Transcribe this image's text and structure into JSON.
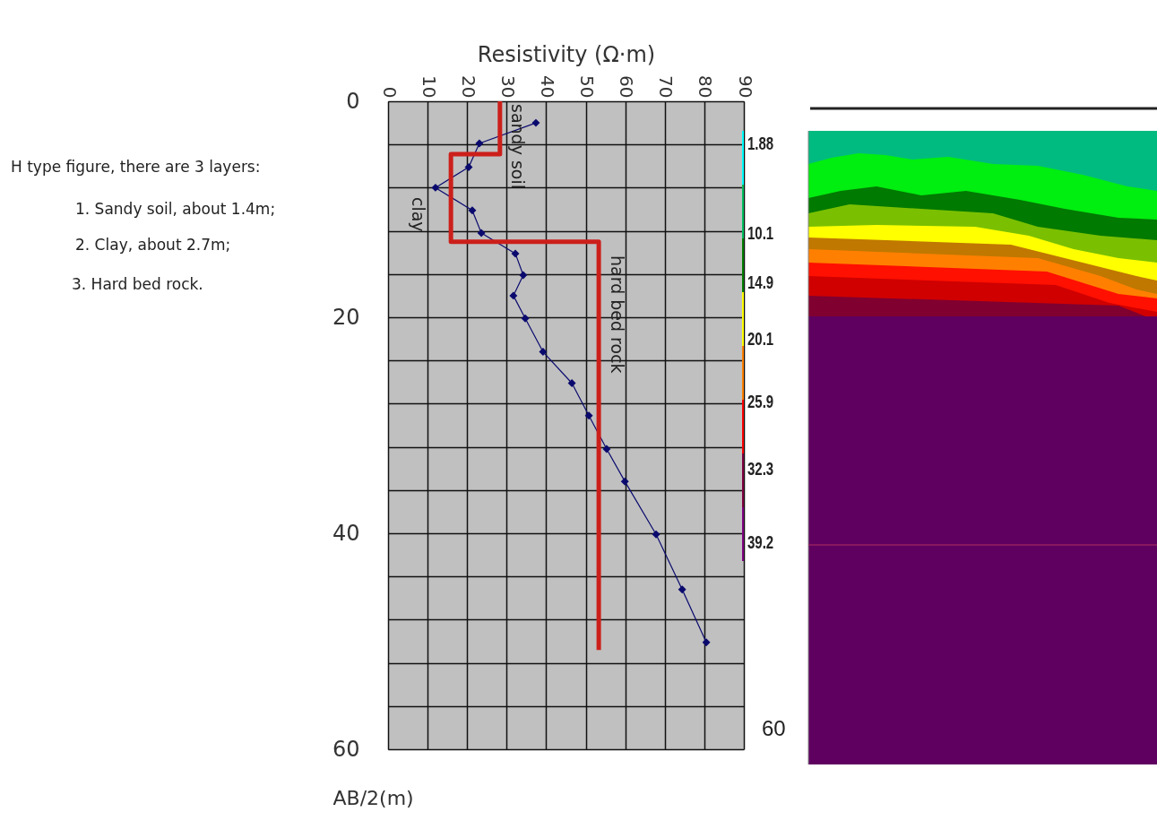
{
  "chart_data": [
    {
      "type": "line",
      "title": "Resistivity (Ω·m)",
      "ylabel": "AB/2(m)",
      "xlim": [
        0,
        90
      ],
      "xticks": [
        0,
        10,
        20,
        30,
        40,
        50,
        60,
        70,
        80,
        90
      ],
      "ylim": [
        60,
        0
      ],
      "yticks": [
        0,
        {
          "value": 4,
          "label": null
        },
        {
          "value": 8,
          "label": null
        },
        {
          "value": 12,
          "label": null
        },
        {
          "value": 16,
          "label": null
        },
        20,
        {
          "value": 24,
          "label": null
        },
        {
          "value": 28,
          "label": null
        },
        {
          "value": 32,
          "label": null
        },
        {
          "value": 36,
          "label": null
        },
        40,
        {
          "value": 44,
          "label": null
        },
        {
          "value": 48,
          "label": null
        },
        {
          "value": 52,
          "label": null
        },
        {
          "value": 56,
          "label": null
        },
        60
      ],
      "grid": true,
      "series": [
        {
          "color": "#0a0a6e",
          "marker": "diamond",
          "x": [
            37.4,
            23.1,
            20.4,
            12.0,
            21.3,
            23.6,
            32.2,
            34.2,
            31.7,
            34.7,
            39.2,
            46.5,
            50.8,
            55.3,
            59.9,
            67.8,
            74.4,
            80.5
          ],
          "values": [
            2.0,
            3.9,
            6.1,
            8.0,
            10.1,
            12.2,
            14.1,
            16.1,
            18.0,
            20.1,
            23.2,
            26.1,
            29.1,
            32.2,
            35.2,
            40.1,
            45.2,
            50.1
          ]
        },
        {
          "color": "#cc1f1a",
          "marker": "none",
          "x": [
            28.3,
            28.3,
            15.9,
            15.9,
            53.3,
            53.3
          ],
          "values": [
            0,
            4.9,
            4.9,
            13.0,
            13.0,
            50.8
          ]
        }
      ],
      "annotations": [
        "H type figure, there are 3 layers:",
        "1. Sandy soil, about 1.4m;",
        "2. Clay, about 2.7m;",
        "3. Hard bed rock.",
        "sandy soil",
        "clay",
        "hard bed rock"
      ]
    },
    {
      "type": "other",
      "annotations": [
        "1.88",
        "10.1",
        "14.9",
        "20.1",
        "25.9",
        "32.3",
        "39.2",
        "60"
      ]
    }
  ]
}
